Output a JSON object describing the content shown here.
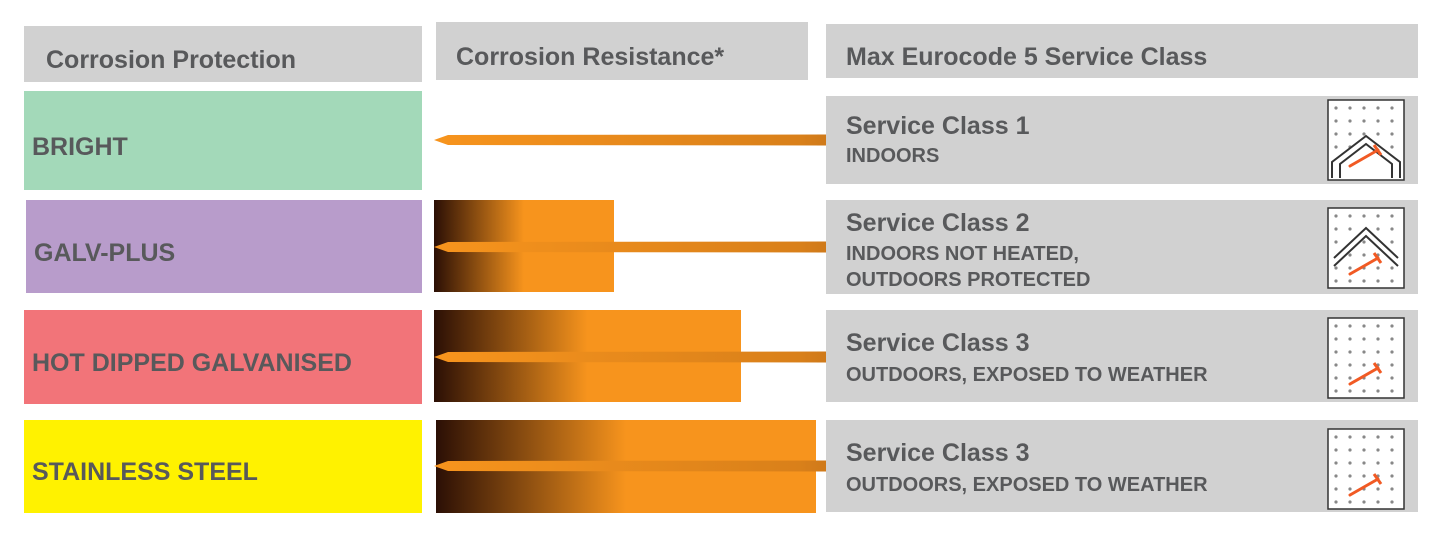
{
  "header": {
    "protection": "Corrosion Protection",
    "resistance": "Corrosion Resistance*",
    "service_class": "Max Eurocode 5 Service Class"
  },
  "rows": [
    {
      "protection": "BRIGHT",
      "service_class": "Service Class 1",
      "conditions": [
        "INDOORS"
      ]
    },
    {
      "protection": "GALV-PLUS",
      "service_class": "Service Class 2",
      "conditions": [
        "INDOORS NOT HEATED,",
        "OUTDOORS PROTECTED"
      ]
    },
    {
      "protection": "HOT DIPPED GALVANISED",
      "service_class": "Service Class 3",
      "conditions": [
        "OUTDOORS, EXPOSED TO WEATHER"
      ]
    },
    {
      "protection": "STAINLESS STEEL",
      "service_class": "Service Class 3",
      "conditions": [
        "OUTDOORS, EXPOSED TO WEATHER"
      ]
    }
  ]
}
